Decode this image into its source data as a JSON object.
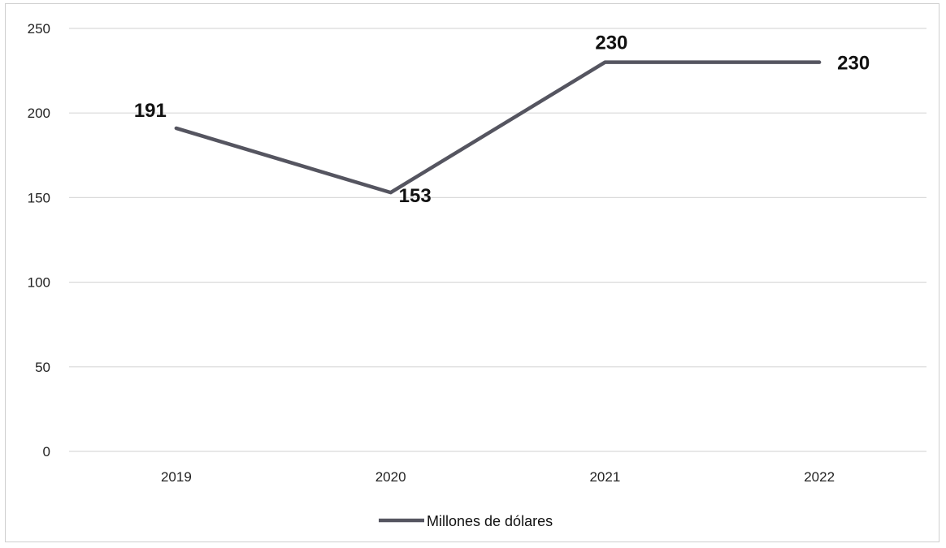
{
  "chart_data": {
    "type": "line",
    "categories": [
      "2019",
      "2020",
      "2021",
      "2022"
    ],
    "series": [
      {
        "name": "Millones de dólares",
        "values": [
          191,
          153,
          230,
          230
        ],
        "color": "#555560"
      }
    ],
    "title": "",
    "xlabel": "",
    "ylabel": "",
    "ylim": [
      0,
      250
    ],
    "yticks": [
      "0",
      "50",
      "100",
      "150",
      "200",
      "250"
    ],
    "grid": true,
    "legend_position": "bottom"
  }
}
